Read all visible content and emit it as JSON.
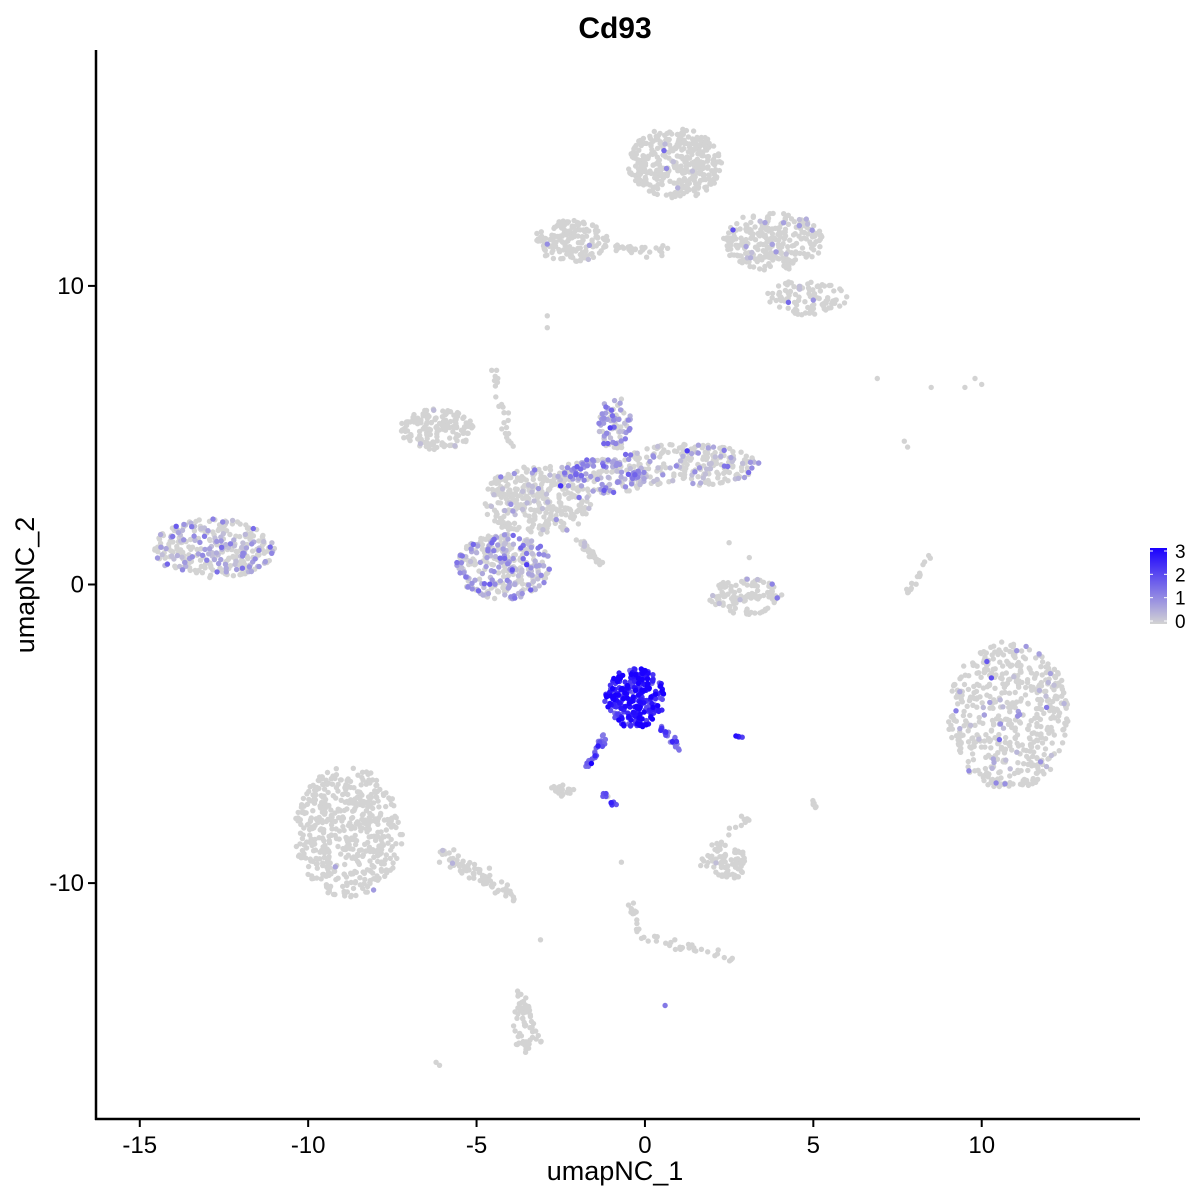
{
  "chart_data": {
    "type": "scatter",
    "title": "Cd93",
    "xlabel": "umapNC_1",
    "ylabel": "umapNC_2",
    "xlim": [
      -16.3,
      14.7
    ],
    "ylim": [
      -17.9,
      17.9
    ],
    "x_ticks": [
      "-15",
      "-10",
      "-5",
      "0",
      "5",
      "10"
    ],
    "x_tick_values": [
      -15,
      -10,
      -5,
      0,
      5,
      10
    ],
    "y_ticks": [
      "10",
      "0",
      "-10"
    ],
    "y_tick_values": [
      10,
      0,
      -10
    ],
    "grid": false,
    "legend_position": "right",
    "color_scale": {
      "low_color": "#d3d3d3",
      "high_color": "#1a00ff",
      "min": 0,
      "max": 3,
      "labels": [
        "3",
        "2",
        "1",
        "0"
      ],
      "label_values": [
        3,
        2,
        1,
        0
      ]
    },
    "clusters": [
      {
        "cx": -12.8,
        "cy": 1.2,
        "rx": 1.8,
        "ry": 1.0,
        "n": 320,
        "expr_mean": 0.5,
        "expr_frac": 0.35
      },
      {
        "cx": -6.2,
        "cy": 5.2,
        "rx": 1.1,
        "ry": 0.7,
        "n": 160,
        "expr_mean": 0.1,
        "expr_frac": 0.03
      },
      {
        "cx": -4.2,
        "cy": 0.6,
        "rx": 1.4,
        "ry": 1.1,
        "n": 320,
        "expr_mean": 0.7,
        "expr_frac": 0.45
      },
      {
        "cx": -3.2,
        "cy": 2.8,
        "rx": 1.6,
        "ry": 1.2,
        "n": 330,
        "expr_mean": 0.4,
        "expr_frac": 0.1
      },
      {
        "cx": -1.3,
        "cy": 3.6,
        "rx": 1.4,
        "ry": 0.6,
        "n": 170,
        "expr_mean": 0.8,
        "expr_frac": 0.55
      },
      {
        "cx": 1.2,
        "cy": 4.0,
        "rx": 2.2,
        "ry": 0.7,
        "n": 220,
        "expr_mean": 0.5,
        "expr_frac": 0.25
      },
      {
        "cx": -0.9,
        "cy": 5.4,
        "rx": 0.5,
        "ry": 0.9,
        "n": 80,
        "expr_mean": 0.8,
        "expr_frac": 0.6
      },
      {
        "cx": 0.9,
        "cy": 14.1,
        "rx": 1.4,
        "ry": 1.2,
        "n": 380,
        "expr_mean": 0.3,
        "expr_frac": 0.01
      },
      {
        "cx": -2.2,
        "cy": 11.5,
        "rx": 1.1,
        "ry": 0.7,
        "n": 160,
        "expr_mean": 0.3,
        "expr_frac": 0.01
      },
      {
        "cx": 3.8,
        "cy": 11.5,
        "rx": 1.5,
        "ry": 1.0,
        "n": 260,
        "expr_mean": 0.5,
        "expr_frac": 0.05
      },
      {
        "cx": 4.8,
        "cy": 9.6,
        "rx": 1.2,
        "ry": 0.6,
        "n": 100,
        "expr_mean": 0.6,
        "expr_frac": 0.1
      },
      {
        "cx": 3.0,
        "cy": -0.4,
        "rx": 1.1,
        "ry": 0.6,
        "n": 110,
        "expr_mean": 0.3,
        "expr_frac": 0.06
      },
      {
        "cx": 10.8,
        "cy": -4.4,
        "rx": 1.8,
        "ry": 2.5,
        "n": 550,
        "expr_mean": 0.5,
        "expr_frac": 0.07
      },
      {
        "cx": -8.8,
        "cy": -8.3,
        "rx": 1.6,
        "ry": 2.2,
        "n": 520,
        "expr_mean": 0.5,
        "expr_frac": 0.01
      },
      {
        "cx": -0.3,
        "cy": -3.8,
        "rx": 0.9,
        "ry": 1.0,
        "n": 280,
        "expr_mean": 2.5,
        "expr_frac": 1.0
      },
      {
        "cx": 2.5,
        "cy": -9.3,
        "rx": 0.5,
        "ry": 0.6,
        "n": 60,
        "expr_mean": 0.3,
        "expr_frac": 0.01
      },
      {
        "cx": -3.6,
        "cy": -14.8,
        "rx": 0.3,
        "ry": 1.0,
        "n": 55,
        "expr_mean": 0.3,
        "expr_frac": 0.01
      },
      {
        "cx": -2.5,
        "cy": -6.9,
        "rx": 0.4,
        "ry": 0.2,
        "n": 25,
        "expr_mean": 0.5,
        "expr_frac": 0.05
      }
    ],
    "paths": [
      {
        "x0": -1.2,
        "y0": -5.0,
        "x1": -1.7,
        "y1": -6.2,
        "n": 30,
        "spread": 0.12,
        "expr_mean": 1.6,
        "expr_frac": 1.0
      },
      {
        "x0": 0.3,
        "y0": -4.6,
        "x1": 1.1,
        "y1": -5.5,
        "n": 22,
        "spread": 0.15,
        "expr_mean": 1.6,
        "expr_frac": 1.0
      },
      {
        "x0": -1.3,
        "y0": -7.0,
        "x1": -0.9,
        "y1": -7.4,
        "n": 10,
        "spread": 0.1,
        "expr_mean": 2.0,
        "expr_frac": 1.0
      },
      {
        "x0": 2.7,
        "y0": -5.1,
        "x1": 2.9,
        "y1": -5.1,
        "n": 6,
        "spread": 0.05,
        "expr_mean": 2.0,
        "expr_frac": 1.0
      },
      {
        "x0": -2.0,
        "y0": 1.5,
        "x1": -1.3,
        "y1": 0.7,
        "n": 40,
        "spread": 0.1,
        "expr_mean": 0.3,
        "expr_frac": 0.02
      },
      {
        "x0": -6.0,
        "y0": -9.0,
        "x1": -4.0,
        "y1": -10.4,
        "n": 80,
        "spread": 0.25,
        "expr_mean": 0.3,
        "expr_frac": 0.01
      },
      {
        "x0": -1.0,
        "y0": 11.3,
        "x1": 0.7,
        "y1": 11.1,
        "n": 30,
        "spread": 0.15,
        "expr_mean": 0.3,
        "expr_frac": 0.01
      },
      {
        "x0": -0.4,
        "y0": -10.6,
        "x1": -0.2,
        "y1": -11.6,
        "n": 14,
        "spread": 0.1,
        "expr_mean": 0.3,
        "expr_frac": 0.01
      },
      {
        "x0": 0.0,
        "y0": -11.8,
        "x1": 2.6,
        "y1": -12.5,
        "n": 30,
        "spread": 0.15,
        "expr_mean": 0.3,
        "expr_frac": 0.01
      },
      {
        "x0": 7.8,
        "y0": -0.3,
        "x1": 8.5,
        "y1": 1.0,
        "n": 16,
        "spread": 0.08,
        "expr_mean": 0.4,
        "expr_frac": 0.1
      },
      {
        "x0": 1.6,
        "y0": -9.5,
        "x1": 3.3,
        "y1": -7.4,
        "n": 28,
        "spread": 0.2,
        "expr_mean": 0.3,
        "expr_frac": 0.01
      },
      {
        "x0": -4.5,
        "y0": 7.3,
        "x1": -4.0,
        "y1": 4.6,
        "n": 24,
        "spread": 0.12,
        "expr_mean": 0.3,
        "expr_frac": 0.02
      },
      {
        "x0": 2.6,
        "y0": 4.3,
        "x1": 2.4,
        "y1": 3.6,
        "n": 14,
        "spread": 0.1,
        "expr_mean": 0.6,
        "expr_frac": 0.3
      },
      {
        "x0": 4.9,
        "y0": -7.1,
        "x1": 5.1,
        "y1": -7.5,
        "n": 6,
        "spread": 0.05,
        "expr_mean": 0.5,
        "expr_frac": 0.2
      },
      {
        "x0": -3.1,
        "y0": -15.4,
        "x1": -3.8,
        "y1": -13.5,
        "n": 16,
        "spread": 0.1,
        "expr_mean": 0.3,
        "expr_frac": 0.01
      }
    ],
    "singletons": [
      {
        "x": -6.2,
        "y": -16.0,
        "v": 0
      },
      {
        "x": -6.1,
        "y": -16.1,
        "v": 0
      },
      {
        "x": 0.6,
        "y": -14.1,
        "v": 1.3
      },
      {
        "x": 6.9,
        "y": 6.9,
        "v": 0
      },
      {
        "x": 8.5,
        "y": 6.6,
        "v": 0
      },
      {
        "x": 9.5,
        "y": 6.6,
        "v": 0
      },
      {
        "x": 9.8,
        "y": 6.9,
        "v": 0
      },
      {
        "x": 10.0,
        "y": 6.7,
        "v": 0
      },
      {
        "x": 7.7,
        "y": 4.8,
        "v": 0
      },
      {
        "x": 7.8,
        "y": 4.6,
        "v": 0
      },
      {
        "x": -3.1,
        "y": -11.9,
        "v": 0
      },
      {
        "x": -0.7,
        "y": -9.3,
        "v": 0
      },
      {
        "x": -1.1,
        "y": -7.1,
        "v": 0
      },
      {
        "x": 3.1,
        "y": 0.9,
        "v": 0
      },
      {
        "x": 2.5,
        "y": 1.4,
        "v": 0
      },
      {
        "x": -2.9,
        "y": 11.4,
        "v": 1.0
      },
      {
        "x": -2.9,
        "y": 9.0,
        "v": 0
      },
      {
        "x": -2.9,
        "y": 8.6,
        "v": 0
      }
    ]
  }
}
